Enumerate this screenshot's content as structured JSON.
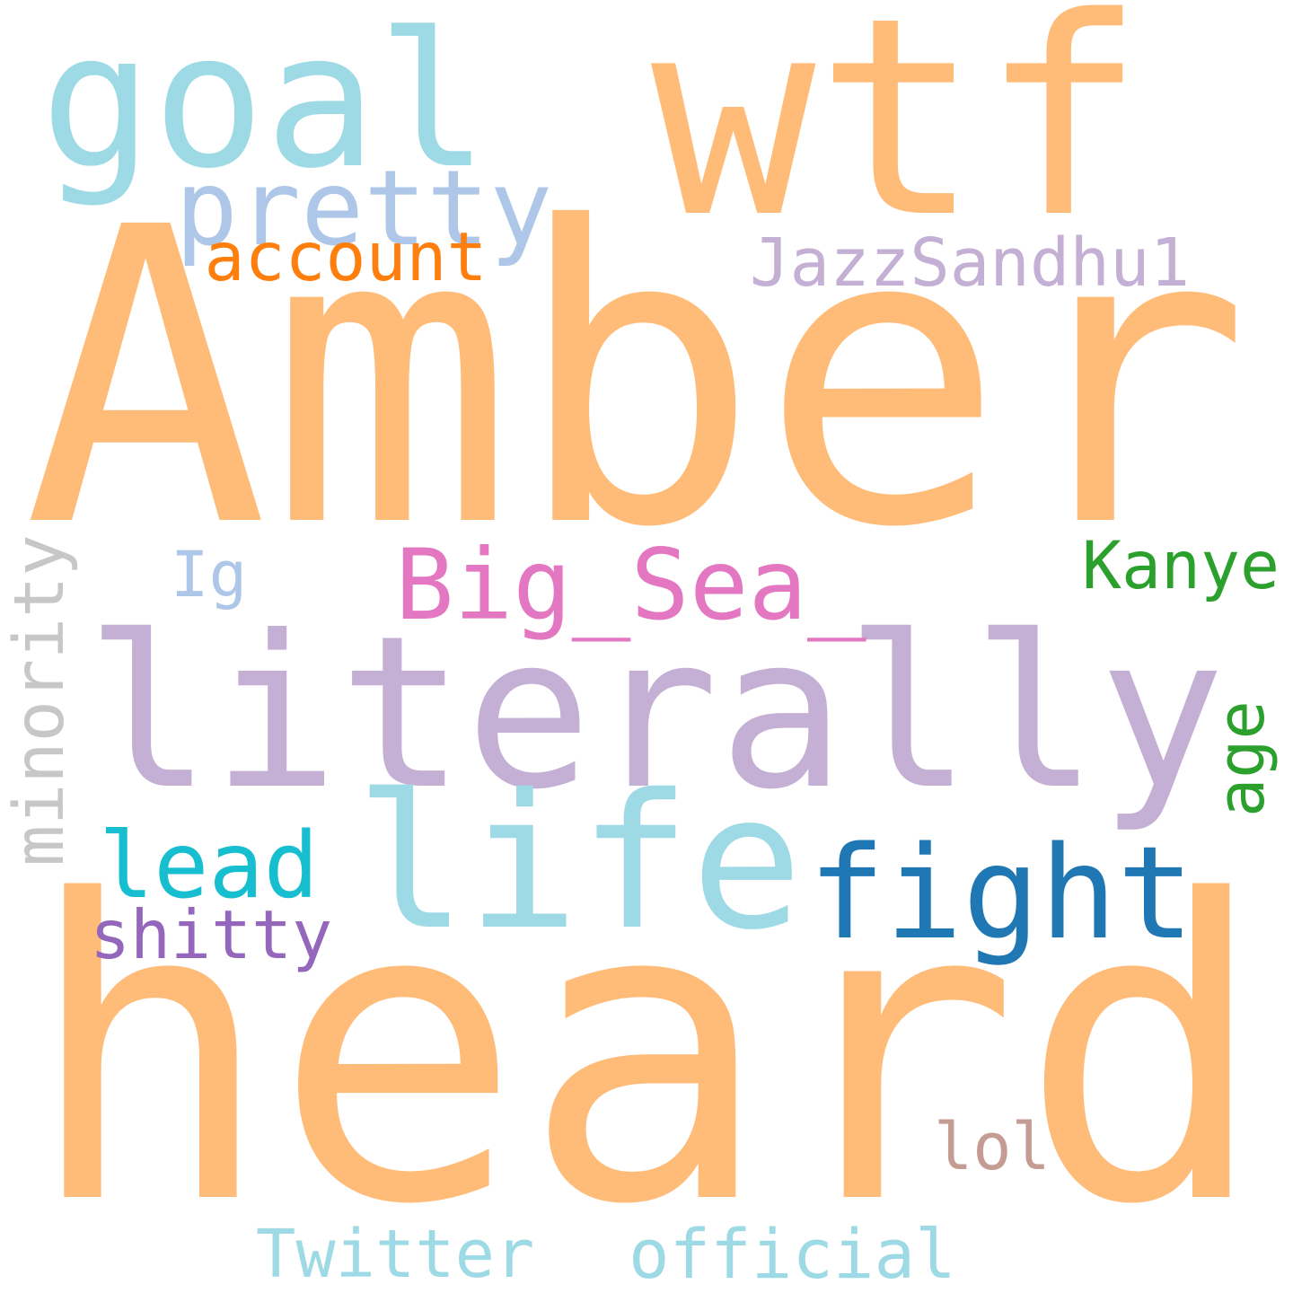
{
  "words": {
    "heard": {
      "text": "heard",
      "color": "#ffbb78"
    },
    "amber": {
      "text": "Amber",
      "color": "#ffbb78"
    },
    "wtf": {
      "text": "wtf",
      "color": "#ffbb78"
    },
    "literally": {
      "text": "literally",
      "color": "#c5b0d5"
    },
    "goal": {
      "text": "goal",
      "color": "#9edae5"
    },
    "life": {
      "text": "life",
      "color": "#9edae5"
    },
    "fight": {
      "text": "fight",
      "color": "#1f77b4"
    },
    "pretty": {
      "text": "pretty",
      "color": "#aec7e8"
    },
    "big_sea": {
      "text": "Big_Sea_",
      "color": "#e377c2"
    },
    "jazzsandhu1": {
      "text": "JazzSandhu1",
      "color": "#c5b0d5"
    },
    "account": {
      "text": "account",
      "color": "#ff7f0e"
    },
    "kanye": {
      "text": "Kanye",
      "color": "#2ca02c"
    },
    "lead": {
      "text": "lead",
      "color": "#17becf"
    },
    "minority": {
      "text": "minority",
      "color": "#c7c7c7"
    },
    "twitter": {
      "text": "Twitter",
      "color": "#9edae5"
    },
    "official": {
      "text": "official",
      "color": "#9edae5"
    },
    "shitty": {
      "text": "shitty",
      "color": "#9467bd"
    },
    "age": {
      "text": "age",
      "color": "#2ca02c"
    },
    "lol": {
      "text": "lol",
      "color": "#c49c94"
    },
    "ig": {
      "text": "Ig",
      "color": "#aec7e8"
    }
  }
}
